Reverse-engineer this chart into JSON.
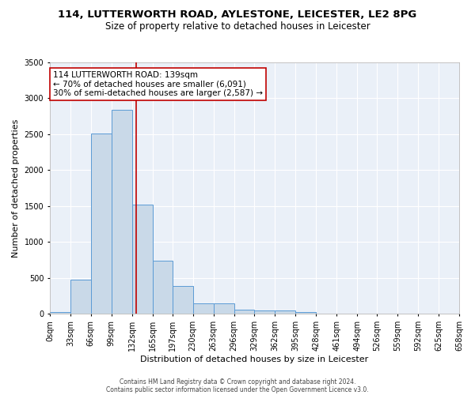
{
  "title1": "114, LUTTERWORTH ROAD, AYLESTONE, LEICESTER, LE2 8PG",
  "title2": "Size of property relative to detached houses in Leicester",
  "xlabel": "Distribution of detached houses by size in Leicester",
  "ylabel": "Number of detached properties",
  "bin_edges": [
    0,
    33,
    66,
    99,
    132,
    165,
    197,
    230,
    263,
    296,
    329,
    362,
    395,
    428,
    461,
    494,
    526,
    559,
    592,
    625,
    658
  ],
  "bar_heights": [
    30,
    475,
    2510,
    2840,
    1520,
    740,
    390,
    150,
    150,
    60,
    50,
    50,
    30,
    0,
    0,
    0,
    0,
    0,
    0,
    0
  ],
  "bar_color": "#c9d9e8",
  "bar_edge_color": "#5b9bd5",
  "property_size": 139,
  "red_line_color": "#c00000",
  "annotation_text": "114 LUTTERWORTH ROAD: 139sqm\n← 70% of detached houses are smaller (6,091)\n30% of semi-detached houses are larger (2,587) →",
  "annotation_box_color": "#ffffff",
  "annotation_box_edge_color": "#c00000",
  "ylim": [
    0,
    3500
  ],
  "yticks": [
    0,
    500,
    1000,
    1500,
    2000,
    2500,
    3000,
    3500
  ],
  "xtick_labels": [
    "0sqm",
    "33sqm",
    "66sqm",
    "99sqm",
    "132sqm",
    "165sqm",
    "197sqm",
    "230sqm",
    "263sqm",
    "296sqm",
    "329sqm",
    "362sqm",
    "395sqm",
    "428sqm",
    "461sqm",
    "494sqm",
    "526sqm",
    "559sqm",
    "592sqm",
    "625sqm",
    "658sqm"
  ],
  "footer1": "Contains HM Land Registry data © Crown copyright and database right 2024.",
  "footer2": "Contains public sector information licensed under the Open Government Licence v3.0.",
  "bg_color": "#eaf0f8",
  "grid_color": "#ffffff",
  "fig_bg_color": "#ffffff",
  "title1_fontsize": 9.5,
  "title2_fontsize": 8.5,
  "axis_label_fontsize": 8,
  "tick_fontsize": 7,
  "annotation_fontsize": 7.5,
  "footer_fontsize": 5.5
}
